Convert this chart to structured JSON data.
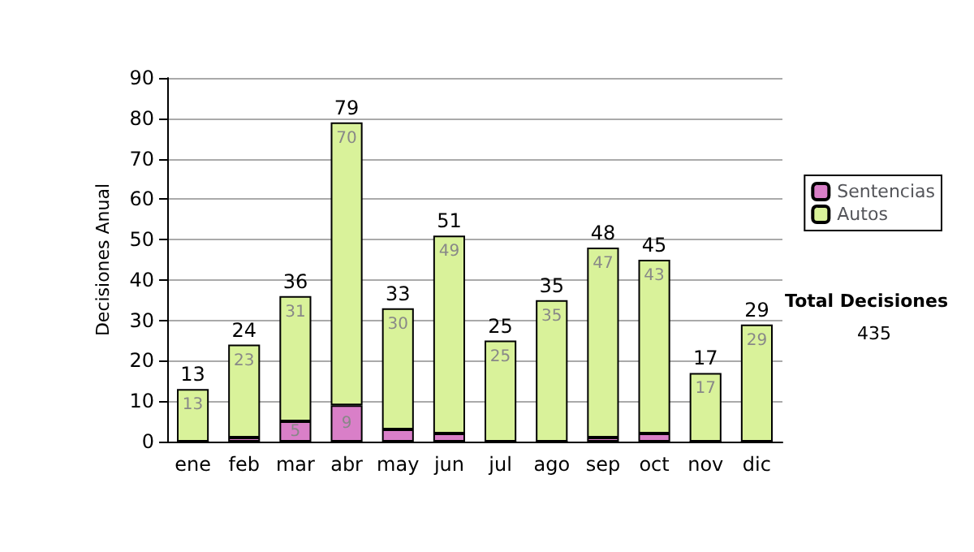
{
  "chart_data": {
    "type": "bar",
    "stacked": true,
    "ylabel": "Decisiones Anual",
    "categories": [
      "ene",
      "feb",
      "mar",
      "abr",
      "may",
      "jun",
      "jul",
      "ago",
      "sep",
      "oct",
      "nov",
      "dic"
    ],
    "series": [
      {
        "name": "Sentencias",
        "color": "#d97fc8",
        "values": [
          0,
          1,
          5,
          9,
          3,
          2,
          0,
          0,
          1,
          2,
          0,
          0
        ],
        "value_labels": [
          null,
          null,
          "5",
          "9",
          null,
          null,
          null,
          null,
          null,
          null,
          null,
          null
        ]
      },
      {
        "name": "Autos",
        "color": "#d9f29a",
        "values": [
          13,
          23,
          31,
          70,
          30,
          49,
          25,
          35,
          47,
          43,
          17,
          29
        ],
        "value_labels": [
          "13",
          "23",
          "31",
          "70",
          "30",
          "49",
          "25",
          "35",
          "47",
          "43",
          "17",
          "29"
        ]
      }
    ],
    "totals": [
      "13",
      "24",
      "36",
      "79",
      "33",
      "51",
      "25",
      "35",
      "48",
      "45",
      "17",
      "29"
    ],
    "ylim": [
      0,
      90
    ],
    "yticks": [
      0,
      10,
      20,
      30,
      40,
      50,
      60,
      70,
      80,
      90
    ],
    "grid": "y",
    "legend": "right",
    "annotations": [
      "Total Decisiones",
      "435"
    ]
  }
}
